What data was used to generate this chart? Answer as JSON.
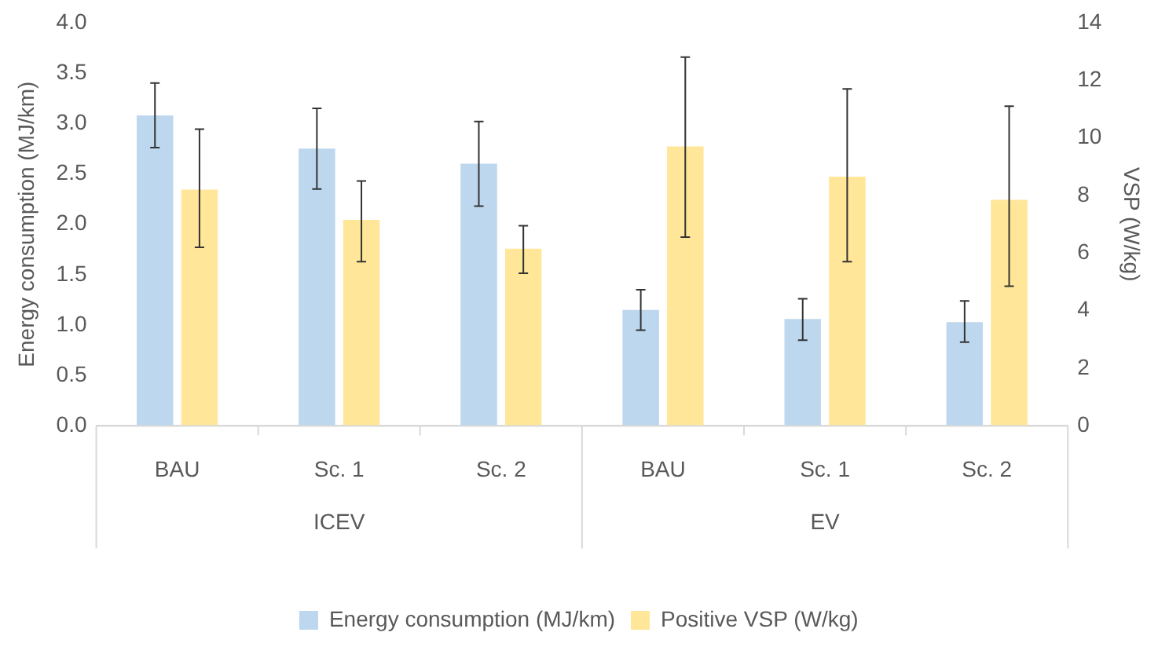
{
  "chart_data": {
    "type": "bar",
    "categories": [
      "BAU",
      "Sc. 1",
      "Sc. 2",
      "BAU",
      "Sc. 1",
      "Sc. 2"
    ],
    "annotations": [
      "ICEV",
      "EV"
    ],
    "ylabel": "Energy consumption (MJ/km)",
    "y2label": "VSP (W/kg)",
    "ylim": [
      0,
      4
    ],
    "yticks": [
      {
        "value": 0,
        "label": "0.0"
      },
      {
        "value": 0.5,
        "label": "0.5"
      },
      {
        "value": 1,
        "label": "1.0"
      },
      {
        "value": 1.5,
        "label": "1.5"
      },
      {
        "value": 2,
        "label": "2.0"
      },
      {
        "value": 2.5,
        "label": "2.5"
      },
      {
        "value": 3,
        "label": "3.0"
      },
      {
        "value": 3.5,
        "label": "3.5"
      },
      {
        "value": 4,
        "label": "4.0"
      }
    ],
    "y2lim": [
      0,
      14
    ],
    "y2ticks": [
      0,
      2,
      4,
      6,
      8,
      10,
      12,
      14
    ],
    "legend": "bottom",
    "series": [
      {
        "name": "Energy consumption (MJ/km)",
        "color": "#bdd7ee",
        "values": [
          3.08,
          2.75,
          2.6,
          1.15,
          1.06,
          1.03
        ],
        "errors": [
          [
            2.76,
            3.4
          ],
          [
            2.35,
            3.15
          ],
          [
            2.18,
            3.02
          ],
          [
            0.95,
            1.35
          ],
          [
            0.85,
            1.26
          ],
          [
            0.83,
            1.24
          ]
        ]
      },
      {
        "name": "Positive VSP (W/kg)",
        "color": "#ffe699",
        "axis": "y2",
        "values": [
          8.2,
          7.15,
          6.15,
          9.7,
          8.65,
          7.85
        ],
        "errors": [
          [
            6.2,
            10.3
          ],
          [
            5.7,
            8.5
          ],
          [
            5.3,
            6.95
          ],
          [
            6.55,
            12.8
          ],
          [
            5.7,
            11.7
          ],
          [
            4.85,
            11.1
          ]
        ]
      }
    ]
  }
}
